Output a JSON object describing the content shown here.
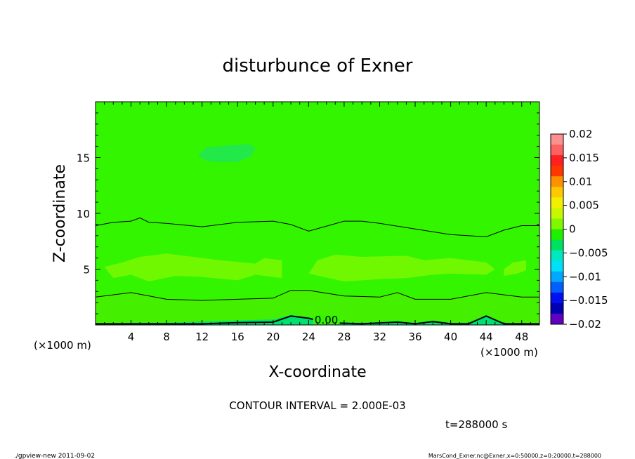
{
  "chart_data": {
    "type": "heatmap",
    "title": "disturbunce of Exner",
    "xlabel": "X-coordinate",
    "ylabel": "Z-coordinate",
    "x_unit_left": "(×1000 m)",
    "x_unit_right": "(×1000 m)",
    "xlim": [
      0,
      50
    ],
    "ylim": [
      0,
      20
    ],
    "x_ticks": [
      4,
      8,
      12,
      16,
      20,
      24,
      28,
      32,
      36,
      40,
      44,
      48
    ],
    "x_tick_labels": [
      "4",
      "8",
      "12",
      "16",
      "20",
      "24",
      "28",
      "32",
      "36",
      "40",
      "44",
      "48"
    ],
    "y_ticks": [
      5,
      10,
      15
    ],
    "y_tick_labels": [
      "5",
      "10",
      "15"
    ],
    "contour_interval_text": "CONTOUR INTERVAL = 2.000E-03",
    "time_text": "t=288000 s",
    "contour_label": "0.00",
    "contour_lines": [
      {
        "points": [
          [
            0,
            0.1
          ],
          [
            4,
            0.1
          ],
          [
            8,
            0.1
          ],
          [
            12,
            0.1
          ],
          [
            16,
            0.2
          ],
          [
            20,
            0.25
          ],
          [
            22,
            0.8
          ],
          [
            24,
            0.6
          ],
          [
            26,
            0.2
          ],
          [
            30,
            0.1
          ],
          [
            34,
            0.25
          ],
          [
            36,
            0.1
          ],
          [
            38,
            0.3
          ],
          [
            40,
            0.1
          ],
          [
            42,
            0.1
          ],
          [
            44,
            0.8
          ],
          [
            46,
            0.1
          ],
          [
            50,
            0.1
          ]
        ]
      },
      {
        "points": [
          [
            0,
            2.5
          ],
          [
            4,
            2.9
          ],
          [
            8,
            2.3
          ],
          [
            12,
            2.2
          ],
          [
            16,
            2.3
          ],
          [
            20,
            2.4
          ],
          [
            22,
            3.1
          ],
          [
            24,
            3.1
          ],
          [
            28,
            2.6
          ],
          [
            32,
            2.5
          ],
          [
            34,
            2.9
          ],
          [
            36,
            2.3
          ],
          [
            40,
            2.3
          ],
          [
            44,
            2.9
          ],
          [
            48,
            2.5
          ],
          [
            50,
            2.5
          ]
        ]
      },
      {
        "points": [
          [
            0,
            8.9
          ],
          [
            2,
            9.2
          ],
          [
            4,
            9.3
          ],
          [
            5,
            9.6
          ],
          [
            6,
            9.2
          ],
          [
            8,
            9.1
          ],
          [
            12,
            8.8
          ],
          [
            16,
            9.2
          ],
          [
            20,
            9.3
          ],
          [
            22,
            9.0
          ],
          [
            24,
            8.4
          ],
          [
            28,
            9.3
          ],
          [
            30,
            9.3
          ],
          [
            32,
            9.1
          ],
          [
            36,
            8.6
          ],
          [
            40,
            8.1
          ],
          [
            44,
            7.9
          ],
          [
            46,
            8.5
          ],
          [
            48,
            8.9
          ],
          [
            50,
            8.9
          ]
        ]
      }
    ],
    "fill_bands": [
      {
        "color": "#00e070",
        "points": [
          [
            0,
            0
          ],
          [
            4,
            0.2
          ],
          [
            8,
            0.2
          ],
          [
            12,
            0.3
          ],
          [
            16,
            0.4
          ],
          [
            20,
            0.5
          ],
          [
            22,
            0.9
          ],
          [
            24,
            0.7
          ],
          [
            26,
            0.3
          ],
          [
            30,
            0.2
          ],
          [
            34,
            0.35
          ],
          [
            36,
            0.2
          ],
          [
            38,
            0.4
          ],
          [
            40,
            0.2
          ],
          [
            42,
            0.2
          ],
          [
            44,
            0.9
          ],
          [
            46,
            0.2
          ],
          [
            50,
            0
          ]
        ]
      },
      {
        "color": "#44f000",
        "points": [
          [
            0,
            2.6
          ],
          [
            4,
            3.0
          ],
          [
            8,
            2.4
          ],
          [
            12,
            2.3
          ],
          [
            16,
            2.4
          ],
          [
            20,
            2.5
          ],
          [
            22,
            3.2
          ],
          [
            24,
            3.2
          ],
          [
            28,
            2.7
          ],
          [
            32,
            2.6
          ],
          [
            34,
            3.0
          ],
          [
            36,
            2.4
          ],
          [
            40,
            2.4
          ],
          [
            44,
            3.0
          ],
          [
            48,
            2.6
          ],
          [
            50,
            2.6
          ]
        ]
      }
    ],
    "patches": [
      {
        "color": "#70f800",
        "points": [
          [
            2,
            4.2
          ],
          [
            4,
            4.5
          ],
          [
            6,
            3.9
          ],
          [
            9,
            4.4
          ],
          [
            12,
            4.3
          ],
          [
            16,
            4.0
          ],
          [
            18,
            4.5
          ],
          [
            21,
            4.2
          ],
          [
            21,
            5.8
          ],
          [
            19,
            6.0
          ],
          [
            18,
            5.5
          ],
          [
            14,
            5.8
          ],
          [
            11,
            6.1
          ],
          [
            8,
            6.4
          ],
          [
            5,
            6.1
          ],
          [
            3,
            5.6
          ],
          [
            1,
            5.2
          ]
        ]
      },
      {
        "color": "#70f800",
        "points": [
          [
            24,
            4.6
          ],
          [
            28,
            3.9
          ],
          [
            32,
            4.1
          ],
          [
            35,
            4.2
          ],
          [
            38,
            4.5
          ],
          [
            40,
            4.6
          ],
          [
            44,
            4.5
          ],
          [
            45,
            5.0
          ],
          [
            44,
            5.6
          ],
          [
            40,
            6.0
          ],
          [
            37,
            5.8
          ],
          [
            35,
            6.2
          ],
          [
            30,
            6.1
          ],
          [
            27,
            6.3
          ],
          [
            25,
            5.8
          ]
        ]
      },
      {
        "color": "#70f800",
        "points": [
          [
            46,
            4.4
          ],
          [
            47.5,
            4.6
          ],
          [
            48.5,
            4.9
          ],
          [
            48.5,
            5.8
          ],
          [
            47,
            5.6
          ],
          [
            46,
            5.0
          ]
        ]
      },
      {
        "color": "#22e84a",
        "points": [
          [
            11.5,
            15.2
          ],
          [
            12.5,
            14.7
          ],
          [
            14,
            14.6
          ],
          [
            16,
            14.6
          ],
          [
            17.5,
            15.1
          ],
          [
            18,
            15.8
          ],
          [
            17.3,
            16.2
          ],
          [
            15,
            16.1
          ],
          [
            12.5,
            15.9
          ]
        ]
      }
    ],
    "background_color": "#33f500",
    "colorbar": {
      "ticks": [
        0.02,
        0.015,
        0.01,
        0.005,
        0,
        -0.005,
        -0.01,
        -0.015,
        -0.02
      ],
      "tick_labels": [
        "0.02",
        "0.015",
        "0.01",
        "0.005",
        "0",
        "−0.005",
        "−0.01",
        "−0.015",
        "−0.02"
      ],
      "colors": [
        "#ff9090",
        "#ff6060",
        "#ff2020",
        "#ff3800",
        "#ff9000",
        "#ffc800",
        "#f0f000",
        "#c8f800",
        "#80f800",
        "#20f000",
        "#00e060",
        "#00e8c0",
        "#00e0f8",
        "#00a8ff",
        "#0060ff",
        "#0010f0",
        "#0000b0",
        "#6000c0"
      ]
    }
  },
  "footer": {
    "left": "./gpview-new  2011-09-02",
    "right": "MarsCond_Exner.nc@Exner,x=0:50000,z=0:20000,t=288000"
  }
}
